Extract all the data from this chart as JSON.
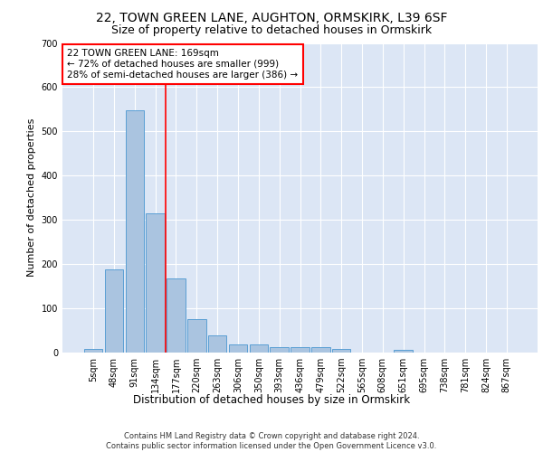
{
  "title1": "22, TOWN GREEN LANE, AUGHTON, ORMSKIRK, L39 6SF",
  "title2": "Size of property relative to detached houses in Ormskirk",
  "xlabel": "Distribution of detached houses by size in Ormskirk",
  "ylabel": "Number of detached properties",
  "footer1": "Contains HM Land Registry data © Crown copyright and database right 2024.",
  "footer2": "Contains public sector information licensed under the Open Government Licence v3.0.",
  "categories": [
    "5sqm",
    "48sqm",
    "91sqm",
    "134sqm",
    "177sqm",
    "220sqm",
    "263sqm",
    "306sqm",
    "350sqm",
    "393sqm",
    "436sqm",
    "479sqm",
    "522sqm",
    "565sqm",
    "608sqm",
    "651sqm",
    "695sqm",
    "738sqm",
    "781sqm",
    "824sqm",
    "867sqm"
  ],
  "values": [
    9,
    188,
    547,
    315,
    168,
    75,
    39,
    18,
    18,
    12,
    12,
    12,
    9,
    0,
    0,
    6,
    0,
    0,
    0,
    0,
    0
  ],
  "bar_color": "#aac4e0",
  "bar_edge_color": "#5a9fd4",
  "vline_x": 3.5,
  "vline_color": "red",
  "annotation_text": "22 TOWN GREEN LANE: 169sqm\n← 72% of detached houses are smaller (999)\n28% of semi-detached houses are larger (386) →",
  "annotation_box_color": "white",
  "annotation_box_edge_color": "red",
  "ylim": [
    0,
    700
  ],
  "yticks": [
    0,
    100,
    200,
    300,
    400,
    500,
    600,
    700
  ],
  "bg_color": "#dce6f5",
  "grid_color": "white",
  "title_fontsize": 10,
  "subtitle_fontsize": 9,
  "footer_fontsize": 6,
  "ylabel_fontsize": 8,
  "tick_fontsize": 7,
  "annot_fontsize": 7.5
}
